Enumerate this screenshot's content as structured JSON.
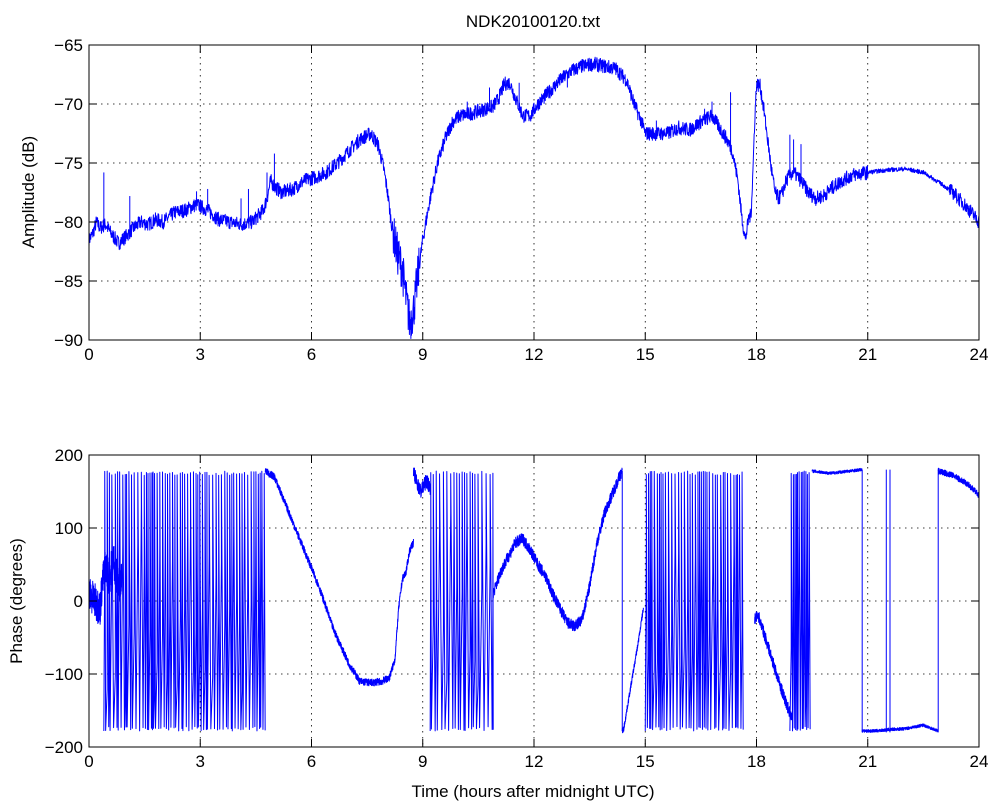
{
  "figure": {
    "title": "NDK20100120.txt",
    "line_color": "#0000ff"
  },
  "chart_data": [
    {
      "type": "line",
      "title": "NDK20100120.txt",
      "xlabel": "",
      "ylabel": "Amplitude (dB)",
      "xlim": [
        0,
        24
      ],
      "ylim": [
        -90,
        -65
      ],
      "xticks": [
        0,
        3,
        6,
        9,
        12,
        15,
        18,
        21,
        24
      ],
      "xtick_labels": [
        "0",
        "3",
        "6",
        "9",
        "12",
        "15",
        "18",
        "21",
        "24"
      ],
      "yticks": [
        -90,
        -85,
        -80,
        -75,
        -70,
        -65
      ],
      "ytick_labels": [
        "−90",
        "−85",
        "−80",
        "−75",
        "−70",
        "−65"
      ],
      "grid": true,
      "noise": 0.6,
      "spikes": [
        {
          "x": 0.4,
          "y": -75.8
        },
        {
          "x": 1.1,
          "y": -77.8
        },
        {
          "x": 2.9,
          "y": -77.4
        },
        {
          "x": 3.2,
          "y": -77.2
        },
        {
          "x": 4.1,
          "y": -78.0
        },
        {
          "x": 4.3,
          "y": -77.2
        },
        {
          "x": 4.8,
          "y": -75.8
        },
        {
          "x": 5.0,
          "y": -74.2
        },
        {
          "x": 10.2,
          "y": -69.8
        },
        {
          "x": 10.8,
          "y": -68.6
        },
        {
          "x": 11.6,
          "y": -68.2
        },
        {
          "x": 12.9,
          "y": -68.6
        },
        {
          "x": 13.4,
          "y": -67.0
        },
        {
          "x": 13.9,
          "y": -66.8
        },
        {
          "x": 15.3,
          "y": -71.4
        },
        {
          "x": 15.8,
          "y": -71.8
        },
        {
          "x": 16.2,
          "y": -72.4
        },
        {
          "x": 16.6,
          "y": -70.4
        },
        {
          "x": 16.8,
          "y": -69.8
        },
        {
          "x": 17.3,
          "y": -69.0
        },
        {
          "x": 18.9,
          "y": -72.6
        },
        {
          "x": 19.0,
          "y": -73.0
        },
        {
          "x": 19.2,
          "y": -73.4
        }
      ],
      "series": [
        {
          "x": [
            0,
            0.1,
            0.2,
            0.3,
            0.45,
            0.6,
            0.8,
            1.0,
            1.2,
            1.4,
            1.6,
            1.8,
            2.0,
            2.3,
            2.6,
            2.9,
            3.2,
            3.5,
            3.8,
            4.1,
            4.4,
            4.7,
            4.8,
            4.9,
            5.0,
            5.2,
            5.5,
            5.8,
            6.1,
            6.4,
            6.7,
            7.0,
            7.3,
            7.6,
            7.8,
            7.95,
            8.05,
            8.15,
            8.3,
            8.45,
            8.55,
            8.65,
            8.75,
            8.85,
            9.0,
            9.2,
            9.4,
            9.6,
            9.8,
            10.0,
            10.3,
            10.6,
            10.9,
            11.05,
            11.2,
            11.35,
            11.5,
            11.7,
            11.9,
            12.1,
            12.4,
            12.7,
            13.0,
            13.3,
            13.6,
            13.9,
            14.2,
            14.5,
            14.7,
            14.9,
            15.0,
            15.3,
            15.6,
            15.9,
            16.2,
            16.5,
            16.8,
            17.0,
            17.2,
            17.35,
            17.5,
            17.6,
            17.7,
            17.8,
            17.85,
            17.9,
            17.95,
            18.0,
            18.1,
            18.2,
            18.3,
            18.4,
            18.5,
            18.6,
            18.7,
            18.8,
            18.9,
            19.0,
            19.2,
            19.4,
            19.6,
            19.8,
            20.0,
            20.3,
            20.6,
            21.0,
            21.5,
            22.0,
            22.5,
            23.0,
            23.3,
            23.6,
            23.8,
            24.0
          ],
          "y": [
            -81.5,
            -81.0,
            -80.0,
            -80.5,
            -80.2,
            -81.0,
            -81.8,
            -81.2,
            -80.5,
            -80.0,
            -80.2,
            -79.8,
            -80.0,
            -79.2,
            -79.0,
            -78.5,
            -79.0,
            -79.8,
            -80.0,
            -80.2,
            -80.0,
            -79.0,
            -78.0,
            -76.5,
            -77.0,
            -77.5,
            -77.2,
            -76.5,
            -76.2,
            -75.8,
            -75.0,
            -74.0,
            -73.0,
            -72.5,
            -73.5,
            -75.5,
            -77.5,
            -80.0,
            -82.5,
            -84.0,
            -86.5,
            -88.5,
            -87.5,
            -85.0,
            -81.5,
            -78.0,
            -75.0,
            -73.0,
            -71.5,
            -71.0,
            -70.8,
            -70.5,
            -70.2,
            -69.5,
            -68.3,
            -68.2,
            -69.5,
            -71.0,
            -71.0,
            -70.0,
            -69.0,
            -68.0,
            -67.2,
            -66.8,
            -66.6,
            -66.8,
            -67.0,
            -68.0,
            -70.0,
            -71.5,
            -72.5,
            -72.5,
            -72.5,
            -72.0,
            -72.2,
            -71.5,
            -71.0,
            -72.0,
            -73.0,
            -74.0,
            -76.5,
            -79.5,
            -81.5,
            -79.5,
            -79.5,
            -76.0,
            -71.5,
            -68.3,
            -68.5,
            -70.5,
            -73.0,
            -75.5,
            -77.5,
            -78.0,
            -77.5,
            -76.5,
            -76.0,
            -75.8,
            -76.5,
            -77.5,
            -78.0,
            -77.8,
            -77.2,
            -76.5,
            -76.0,
            -75.8,
            -75.6,
            -75.5,
            -75.8,
            -76.8,
            -77.5,
            -78.5,
            -79.2,
            -80.0
          ]
        }
      ]
    },
    {
      "type": "line",
      "title": "",
      "xlabel": "Time (hours after midnight UTC)",
      "ylabel": "Phase (degrees)",
      "xlim": [
        0,
        24
      ],
      "ylim": [
        -200,
        200
      ],
      "xticks": [
        0,
        3,
        6,
        9,
        12,
        15,
        18,
        21,
        24
      ],
      "xtick_labels": [
        "0",
        "3",
        "6",
        "9",
        "12",
        "15",
        "18",
        "21",
        "24"
      ],
      "yticks": [
        -200,
        -100,
        0,
        100,
        200
      ],
      "ytick_labels": [
        "−200",
        "−100",
        "0",
        "100",
        "200"
      ],
      "grid": true,
      "series": [
        {
          "name": "",
          "x": [
            0,
            0.15,
            0.3,
            0.35,
            0.45,
            0.55,
            0.65,
            0.8,
            0.9
          ],
          "y": [
            10,
            0,
            -10,
            20,
            50,
            30,
            60,
            20,
            40
          ],
          "noise": 25
        },
        {
          "name": "",
          "x": [
            0.4,
            4.75
          ],
          "y": [
            -180,
            180
          ],
          "wrap": true,
          "cycles": 70
        },
        {
          "name": "",
          "x": [
            4.75,
            5.0,
            5.4,
            5.8,
            6.2,
            6.6,
            7.0,
            7.3,
            7.6,
            7.9,
            8.1,
            8.25,
            8.35,
            8.45,
            8.55,
            8.65,
            8.75
          ],
          "y": [
            178,
            170,
            120,
            70,
            20,
            -40,
            -85,
            -110,
            -112,
            -110,
            -105,
            -80,
            -10,
            30,
            40,
            70,
            80
          ],
          "noise": 5
        },
        {
          "name": "",
          "x": [
            8.75,
            8.85,
            8.95,
            9.1,
            9.2
          ],
          "y": [
            178,
            160,
            150,
            165,
            155
          ],
          "noise": 10
        },
        {
          "name": "",
          "x": [
            9.2,
            10.9
          ],
          "y": [
            -180,
            180
          ],
          "wrap": true,
          "cycles": 22
        },
        {
          "name": "",
          "x": [
            10.9,
            11.1,
            11.3,
            11.5,
            11.7,
            11.9,
            12.1,
            12.3,
            12.5,
            12.7,
            12.9,
            13.1,
            13.3,
            13.5,
            13.7,
            13.9,
            14.1,
            14.3,
            14.38
          ],
          "y": [
            10,
            40,
            60,
            80,
            85,
            70,
            50,
            35,
            10,
            -10,
            -30,
            -35,
            -25,
            20,
            80,
            120,
            145,
            170,
            178
          ],
          "noise": 8
        },
        {
          "name": "",
          "x": [
            14.38,
            14.42,
            14.6,
            14.8,
            14.95
          ],
          "y": [
            -178,
            -175,
            -120,
            -60,
            -10
          ],
          "noise": 4
        },
        {
          "name": "",
          "x": [
            15.0,
            17.8
          ],
          "y": [
            -180,
            180
          ],
          "wrap": true,
          "cycles": 40
        },
        {
          "name": "",
          "x": [
            17.95,
            18.05,
            18.3,
            18.6,
            18.8,
            18.95
          ],
          "y": [
            -25,
            -20,
            -60,
            -110,
            -140,
            -160
          ],
          "noise": 8
        },
        {
          "name": "",
          "x": [
            18.9,
            19.45
          ],
          "y": [
            -180,
            180
          ],
          "wrap": true,
          "cycles": 12
        },
        {
          "name": "",
          "x": [
            19.5,
            20.0,
            20.5,
            20.85
          ],
          "y": [
            178,
            175,
            178,
            180
          ],
          "noise": 2
        },
        {
          "name": "",
          "x": [
            20.85,
            21.2,
            21.6,
            22.0,
            22.5,
            22.9
          ],
          "y": [
            -178,
            -178,
            -176,
            -175,
            -170,
            -178
          ],
          "noise": 2
        },
        {
          "name": "",
          "x": [
            22.9,
            23.3,
            23.7,
            24.0
          ],
          "y": [
            178,
            172,
            160,
            145
          ],
          "noise": 4
        }
      ],
      "jumps": [
        {
          "x": 20.85,
          "y1": 180,
          "y2": -180
        },
        {
          "x": 21.5,
          "y1": -180,
          "y2": 180
        },
        {
          "x": 21.6,
          "y1": 180,
          "y2": -180
        },
        {
          "x": 22.9,
          "y1": -180,
          "y2": 180
        },
        {
          "x": 14.38,
          "y1": 178,
          "y2": -178
        }
      ]
    }
  ]
}
